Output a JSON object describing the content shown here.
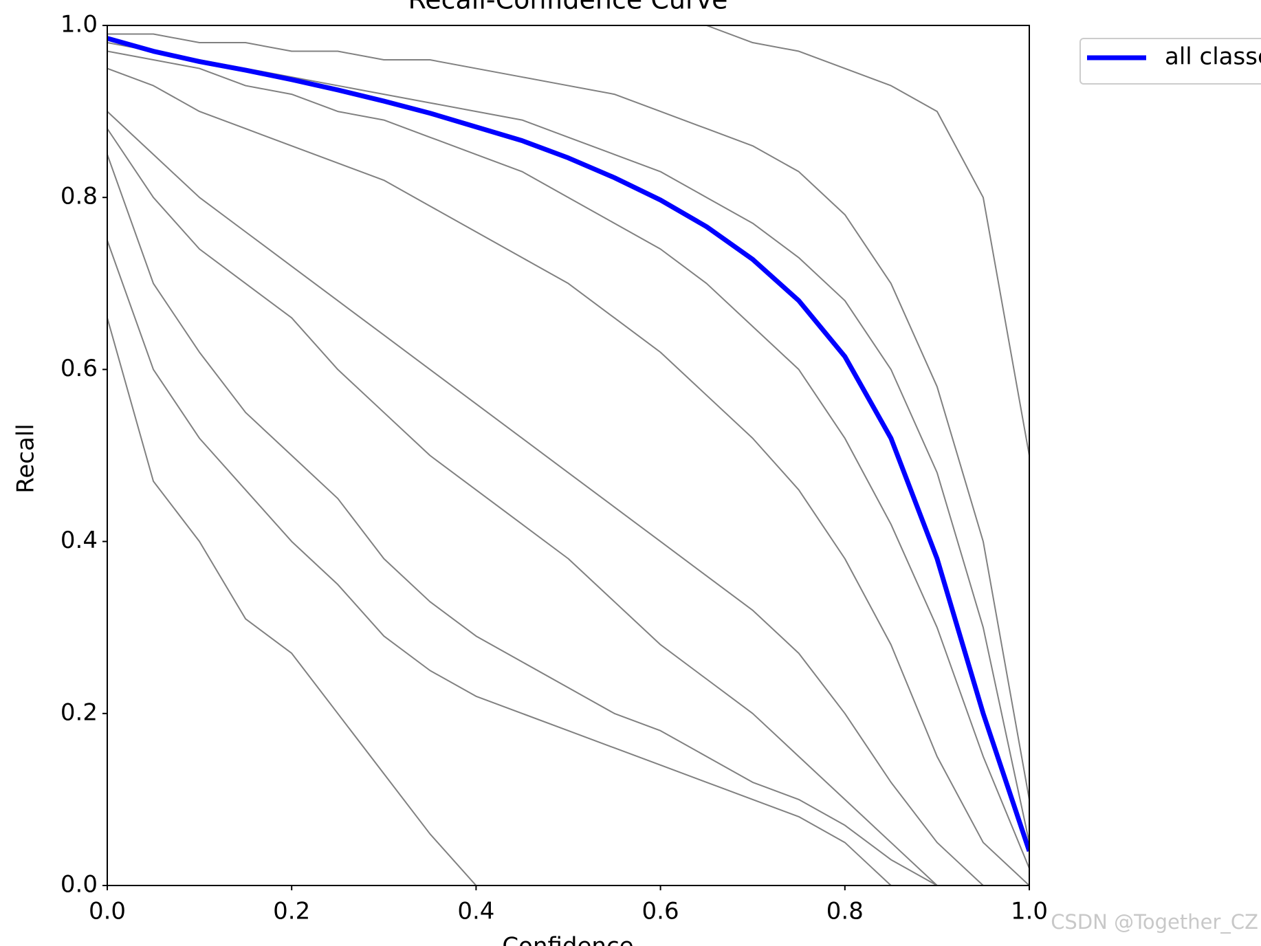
{
  "chart_data": {
    "type": "line",
    "title": "Recall-Confidence Curve",
    "xlabel": "Confidence",
    "ylabel": "Recall",
    "watermark": "CSDN @Together_CZ",
    "x": [
      0,
      0.05,
      0.1,
      0.15,
      0.2,
      0.25,
      0.3,
      0.35,
      0.4,
      0.45,
      0.5,
      0.55,
      0.6,
      0.65,
      0.7,
      0.75,
      0.8,
      0.85,
      0.9,
      0.95,
      1
    ],
    "xlim": [
      0,
      1
    ],
    "ylim": [
      0,
      1
    ],
    "xticks": [
      {
        "value": 0,
        "label": "0.0"
      },
      {
        "value": 0.2,
        "label": "0.2"
      },
      {
        "value": 0.4,
        "label": "0.4"
      },
      {
        "value": 0.6,
        "label": "0.6"
      },
      {
        "value": 0.8,
        "label": "0.8"
      },
      {
        "value": 1,
        "label": "1.0"
      }
    ],
    "yticks": [
      {
        "value": 0,
        "label": "0.0"
      },
      {
        "value": 0.2,
        "label": "0.2"
      },
      {
        "value": 0.4,
        "label": "0.4"
      },
      {
        "value": 0.6,
        "label": "0.6"
      },
      {
        "value": 0.8,
        "label": "0.8"
      },
      {
        "value": 1,
        "label": "1.0"
      }
    ],
    "legend": "upper right outside",
    "series": [
      {
        "color": "#808080",
        "values": [
          1,
          1,
          1,
          1,
          1,
          1,
          1,
          1,
          1,
          1,
          1,
          1,
          1,
          1,
          0.98,
          0.97,
          0.95,
          0.93,
          0.9,
          0.8,
          0.5
        ]
      },
      {
        "color": "#808080",
        "values": [
          0.99,
          0.99,
          0.98,
          0.98,
          0.97,
          0.97,
          0.96,
          0.96,
          0.95,
          0.94,
          0.93,
          0.92,
          0.9,
          0.88,
          0.86,
          0.83,
          0.78,
          0.7,
          0.58,
          0.4,
          0.1
        ]
      },
      {
        "color": "#808080",
        "values": [
          0.98,
          0.97,
          0.96,
          0.95,
          0.94,
          0.93,
          0.92,
          0.91,
          0.9,
          0.89,
          0.87,
          0.85,
          0.83,
          0.8,
          0.77,
          0.73,
          0.68,
          0.6,
          0.48,
          0.3,
          0.05
        ]
      },
      {
        "color": "#808080",
        "values": [
          0.97,
          0.96,
          0.95,
          0.93,
          0.92,
          0.9,
          0.89,
          0.87,
          0.85,
          0.83,
          0.8,
          0.77,
          0.74,
          0.7,
          0.65,
          0.6,
          0.52,
          0.42,
          0.3,
          0.15,
          0.02
        ]
      },
      {
        "color": "#808080",
        "values": [
          0.95,
          0.93,
          0.9,
          0.88,
          0.86,
          0.84,
          0.82,
          0.79,
          0.76,
          0.73,
          0.7,
          0.66,
          0.62,
          0.57,
          0.52,
          0.46,
          0.38,
          0.28,
          0.15,
          0.05,
          0
        ]
      },
      {
        "color": "#808080",
        "values": [
          0.9,
          0.85,
          0.8,
          0.76,
          0.72,
          0.68,
          0.64,
          0.6,
          0.56,
          0.52,
          0.48,
          0.44,
          0.4,
          0.36,
          0.32,
          0.27,
          0.2,
          0.12,
          0.05,
          0,
          0
        ]
      },
      {
        "color": "#808080",
        "values": [
          0.88,
          0.8,
          0.74,
          0.7,
          0.66,
          0.6,
          0.55,
          0.5,
          0.46,
          0.42,
          0.38,
          0.33,
          0.28,
          0.24,
          0.2,
          0.15,
          0.1,
          0.05,
          0,
          0,
          0
        ]
      },
      {
        "color": "#808080",
        "values": [
          0.85,
          0.7,
          0.62,
          0.55,
          0.5,
          0.45,
          0.38,
          0.33,
          0.29,
          0.26,
          0.23,
          0.2,
          0.18,
          0.15,
          0.12,
          0.1,
          0.07,
          0.03,
          0,
          0,
          0
        ]
      },
      {
        "color": "#808080",
        "values": [
          0.75,
          0.6,
          0.52,
          0.46,
          0.4,
          0.35,
          0.29,
          0.25,
          0.22,
          0.2,
          0.18,
          0.16,
          0.14,
          0.12,
          0.1,
          0.08,
          0.05,
          0,
          0,
          0,
          0
        ]
      },
      {
        "color": "#808080",
        "values": [
          0.66,
          0.47,
          0.4,
          0.31,
          0.27,
          0.2,
          0.13,
          0.06,
          0,
          0,
          0,
          0,
          0,
          0,
          0,
          0,
          0,
          0,
          0,
          0,
          0
        ]
      },
      {
        "name": "all classes",
        "color": "#0000ff",
        "values": [
          0.985,
          0.97,
          0.958,
          0.948,
          0.937,
          0.925,
          0.912,
          0.898,
          0.882,
          0.866,
          0.846,
          0.823,
          0.797,
          0.766,
          0.728,
          0.68,
          0.615,
          0.52,
          0.38,
          0.2,
          0.04
        ]
      }
    ]
  }
}
